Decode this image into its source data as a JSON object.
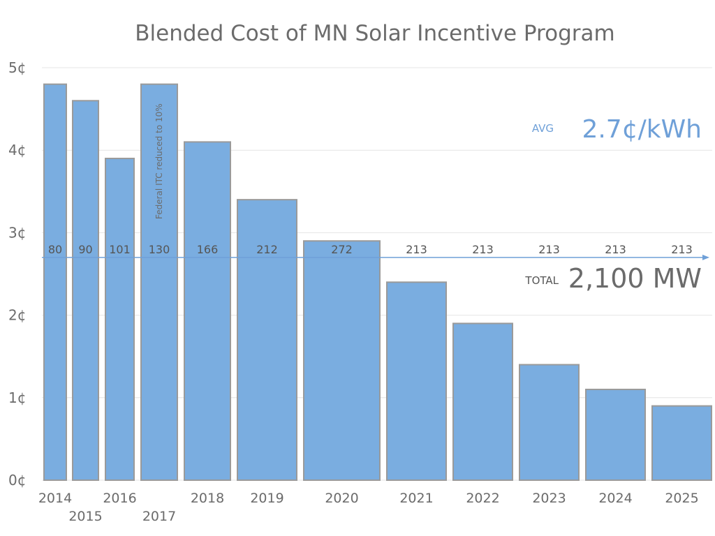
{
  "chart_data": {
    "type": "bar",
    "title": "Blended Cost of MN Solar Incentive Program",
    "categories": [
      "2014",
      "2015",
      "2016",
      "2017",
      "2018",
      "2019",
      "2020",
      "2021",
      "2022",
      "2023",
      "2024",
      "2025"
    ],
    "values": [
      4.8,
      4.6,
      3.9,
      4.8,
      4.1,
      3.4,
      2.9,
      2.4,
      1.9,
      1.4,
      1.1,
      0.9
    ],
    "bar_labels": [
      "80",
      "90",
      "101",
      "130",
      "166",
      "212",
      "272",
      "213",
      "213",
      "213",
      "213",
      "213"
    ],
    "y_ticks": [
      "0¢",
      "1¢",
      "2¢",
      "3¢",
      "4¢",
      "5¢"
    ],
    "ylim": [
      0,
      5
    ],
    "grid": true,
    "annotations": {
      "itc_note": "Federal ITC reduced to 10%",
      "avg_label": "AVG",
      "avg_value_text": "2.7¢/kWh",
      "avg_value": 2.7,
      "total_label": "TOTAL",
      "total_value_text": "2,100 MW"
    },
    "colors": {
      "bar": "#7aade0",
      "avg_line": "#6fa0d8",
      "text": "#6b6b6b"
    }
  }
}
